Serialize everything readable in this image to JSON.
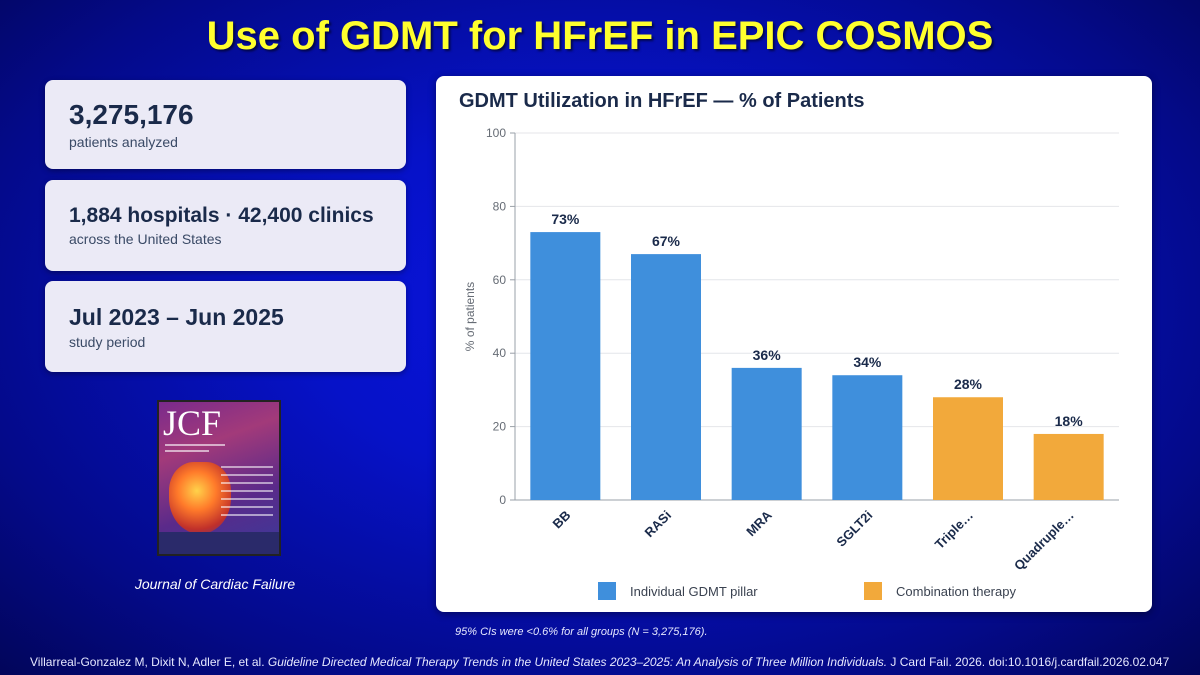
{
  "title": "Use of GDMT for HFrEF in EPIC COSMOS",
  "stats": [
    {
      "value": "3,275,176",
      "label": "patients analyzed"
    },
    {
      "value": "1,884 hospitals · 42,400 clinics",
      "label": "across the United States"
    },
    {
      "value": "Jul 2023 – Jun 2025",
      "label": "study period"
    }
  ],
  "journal": {
    "cover_text": "JCF",
    "caption": "Journal of Cardiac Failure"
  },
  "chart_data": {
    "type": "bar",
    "title": "GDMT Utilization in HFrEF — % of Patients",
    "categories": [
      "BB",
      "RASi",
      "MRA",
      "SGLT2i",
      "Triple…",
      "Quadruple…"
    ],
    "values": [
      73,
      67,
      36,
      34,
      28,
      18
    ],
    "value_labels": [
      "73%",
      "67%",
      "36%",
      "34%",
      "28%",
      "18%"
    ],
    "groups": [
      "individual",
      "individual",
      "individual",
      "individual",
      "combination",
      "combination"
    ],
    "ylabel": "% of patients",
    "ylim": [
      0,
      100
    ],
    "yticks": [
      0,
      20,
      40,
      60,
      80,
      100
    ],
    "grid": true,
    "legend_position": "bottom",
    "legend": [
      {
        "key": "individual",
        "label": "Individual GDMT pillar",
        "color": "#3f8fdc"
      },
      {
        "key": "combination",
        "label": "Combination therapy",
        "color": "#f2a93b"
      }
    ]
  },
  "footnote": "95% CIs were <0.6% for all groups (N = 3,275,176).",
  "citation": {
    "authors": "Villarreal-Gonzalez M, Dixit N, Adler E, et al. ",
    "article": "Guideline Directed Medical Therapy Trends in the United States 2023–2025: An Analysis of Three Million Individuals.",
    "source": " J Card Fail. 2026. doi:10.1016/j.cardfail.2026.02.047"
  },
  "colors": {
    "title": "#ffff2e",
    "background": "#0612c8",
    "individual": "#3f8fdc",
    "combination": "#f2a93b"
  }
}
